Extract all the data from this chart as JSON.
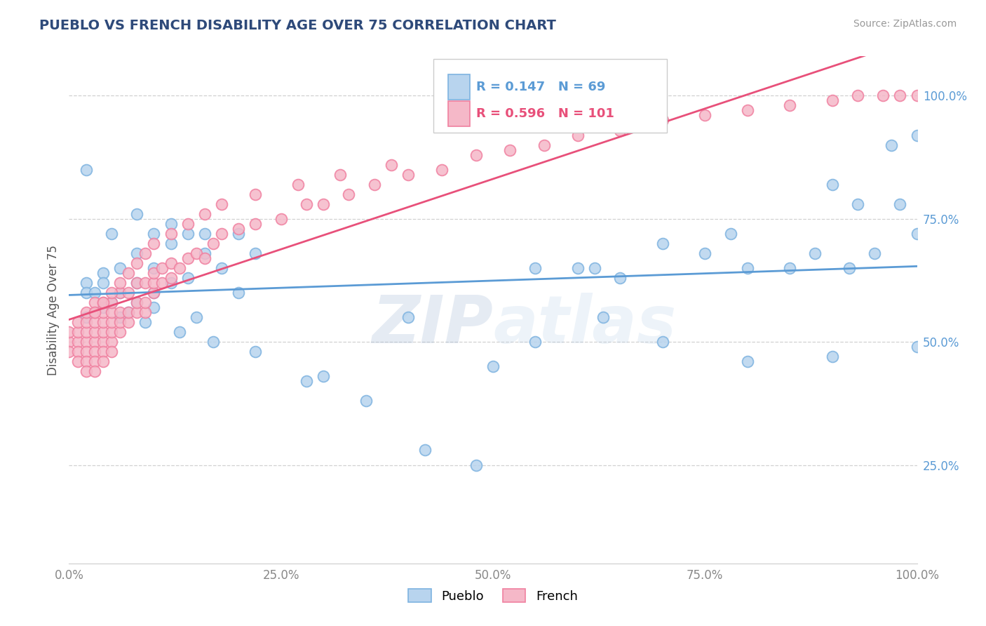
{
  "title": "PUEBLO VS FRENCH DISABILITY AGE OVER 75 CORRELATION CHART",
  "source": "Source: ZipAtlas.com",
  "ylabel": "Disability Age Over 75",
  "pueblo_R": 0.147,
  "pueblo_N": 69,
  "french_R": 0.596,
  "french_N": 101,
  "pueblo_color": "#B8D4EE",
  "french_color": "#F5B8C8",
  "pueblo_edge_color": "#7EB3E0",
  "french_edge_color": "#F080A0",
  "pueblo_line_color": "#5B9BD5",
  "french_line_color": "#E8507A",
  "background_color": "#FFFFFF",
  "grid_color": "#CCCCCC",
  "title_color": "#2E4A7A",
  "ytick_color": "#5B9BD5",
  "xtick_color": "#888888",
  "xlim": [
    0,
    1
  ],
  "ylim": [
    0.05,
    1.08
  ],
  "pueblo_x": [
    0.02,
    0.05,
    0.08,
    0.08,
    0.1,
    0.12,
    0.12,
    0.14,
    0.16,
    0.16,
    0.18,
    0.2,
    0.22,
    0.02,
    0.04,
    0.06,
    0.08,
    0.1,
    0.12,
    0.14,
    0.02,
    0.04,
    0.06,
    0.08,
    0.1,
    0.02,
    0.04,
    0.06,
    0.1,
    0.15,
    0.2,
    0.3,
    0.4,
    0.5,
    0.55,
    0.6,
    0.62,
    0.65,
    0.7,
    0.75,
    0.78,
    0.8,
    0.85,
    0.88,
    0.9,
    0.92,
    0.93,
    0.95,
    0.97,
    0.98,
    1.0,
    1.0,
    0.03,
    0.05,
    0.07,
    0.09,
    0.13,
    0.17,
    0.22,
    0.28,
    0.35,
    0.42,
    0.48,
    0.55,
    0.63,
    0.7,
    0.8,
    0.9,
    1.0
  ],
  "pueblo_y": [
    0.85,
    0.72,
    0.68,
    0.76,
    0.72,
    0.7,
    0.74,
    0.72,
    0.72,
    0.68,
    0.65,
    0.72,
    0.68,
    0.62,
    0.64,
    0.65,
    0.62,
    0.65,
    0.62,
    0.63,
    0.6,
    0.62,
    0.6,
    0.58,
    0.6,
    0.55,
    0.57,
    0.55,
    0.57,
    0.55,
    0.6,
    0.43,
    0.55,
    0.45,
    0.65,
    0.65,
    0.65,
    0.63,
    0.7,
    0.68,
    0.72,
    0.65,
    0.65,
    0.68,
    0.82,
    0.65,
    0.78,
    0.68,
    0.9,
    0.78,
    0.72,
    0.92,
    0.6,
    0.58,
    0.56,
    0.54,
    0.52,
    0.5,
    0.48,
    0.42,
    0.38,
    0.28,
    0.25,
    0.5,
    0.55,
    0.5,
    0.46,
    0.47,
    0.49
  ],
  "french_x": [
    0.0,
    0.0,
    0.0,
    0.01,
    0.01,
    0.01,
    0.01,
    0.01,
    0.02,
    0.02,
    0.02,
    0.02,
    0.02,
    0.02,
    0.02,
    0.03,
    0.03,
    0.03,
    0.03,
    0.03,
    0.03,
    0.03,
    0.03,
    0.04,
    0.04,
    0.04,
    0.04,
    0.04,
    0.04,
    0.04,
    0.05,
    0.05,
    0.05,
    0.05,
    0.05,
    0.05,
    0.06,
    0.06,
    0.06,
    0.06,
    0.07,
    0.07,
    0.07,
    0.08,
    0.08,
    0.08,
    0.09,
    0.09,
    0.09,
    0.1,
    0.1,
    0.1,
    0.11,
    0.11,
    0.12,
    0.12,
    0.13,
    0.14,
    0.15,
    0.16,
    0.17,
    0.18,
    0.2,
    0.22,
    0.25,
    0.28,
    0.3,
    0.33,
    0.36,
    0.4,
    0.44,
    0.48,
    0.52,
    0.56,
    0.6,
    0.65,
    0.7,
    0.75,
    0.8,
    0.85,
    0.9,
    0.93,
    0.96,
    0.98,
    1.0,
    0.03,
    0.04,
    0.05,
    0.06,
    0.07,
    0.08,
    0.09,
    0.1,
    0.12,
    0.14,
    0.16,
    0.18,
    0.22,
    0.27,
    0.32,
    0.38
  ],
  "french_y": [
    0.5,
    0.52,
    0.48,
    0.5,
    0.52,
    0.54,
    0.48,
    0.46,
    0.5,
    0.52,
    0.48,
    0.54,
    0.46,
    0.44,
    0.56,
    0.5,
    0.52,
    0.48,
    0.54,
    0.46,
    0.44,
    0.56,
    0.58,
    0.5,
    0.52,
    0.48,
    0.54,
    0.46,
    0.56,
    0.58,
    0.5,
    0.52,
    0.54,
    0.48,
    0.56,
    0.58,
    0.52,
    0.54,
    0.56,
    0.6,
    0.54,
    0.56,
    0.6,
    0.56,
    0.58,
    0.62,
    0.56,
    0.58,
    0.62,
    0.6,
    0.62,
    0.64,
    0.62,
    0.65,
    0.63,
    0.66,
    0.65,
    0.67,
    0.68,
    0.67,
    0.7,
    0.72,
    0.73,
    0.74,
    0.75,
    0.78,
    0.78,
    0.8,
    0.82,
    0.84,
    0.85,
    0.88,
    0.89,
    0.9,
    0.92,
    0.93,
    0.95,
    0.96,
    0.97,
    0.98,
    0.99,
    1.0,
    1.0,
    1.0,
    1.0,
    0.56,
    0.58,
    0.6,
    0.62,
    0.64,
    0.66,
    0.68,
    0.7,
    0.72,
    0.74,
    0.76,
    0.78,
    0.8,
    0.82,
    0.84,
    0.86
  ]
}
